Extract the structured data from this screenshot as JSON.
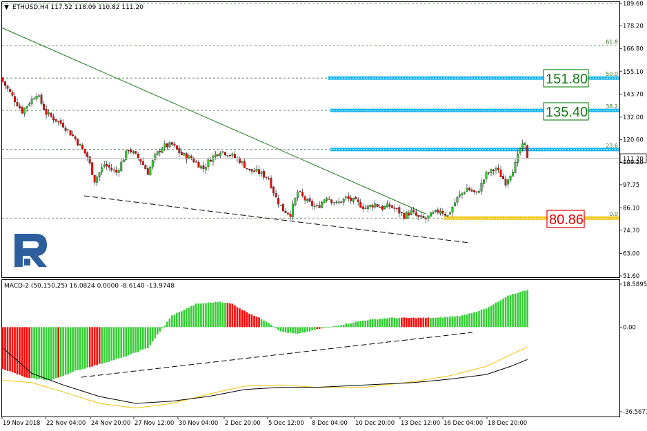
{
  "main_header": {
    "arrow": "▼",
    "text": "ETHUSD,H4  117.52 118.09 110.82 111.20"
  },
  "macd_header": {
    "text": "MACD-2 (50,150,25) 16.0824 0.0000 -8.6140 -13.9748"
  },
  "logo": {
    "icon": "roboforex-r-logo"
  },
  "colors": {
    "bull": "#33cc33",
    "bear": "#ff0000",
    "trend": "#1a7a1a",
    "fib_line": "#3b7a3b",
    "level_blue": "#00aeef",
    "level_yellow": "#f2c200",
    "support_red": "#e00000",
    "signal_yellow": "#f2c200"
  },
  "chart_data": [
    {
      "type": "candlestick",
      "title": "ETHUSD,H4",
      "ohlc_current": {
        "open": 117.52,
        "high": 118.09,
        "low": 110.82,
        "close": 111.2
      },
      "y_ticks": [
        189.6,
        178.2,
        166.8,
        155.1,
        143.7,
        132.0,
        120.6,
        109.2,
        97.75,
        86.1,
        74.7,
        63.0,
        51.6
      ],
      "ylim": [
        51.6,
        189.6
      ],
      "current_price": 111.2,
      "x_ticks": [
        "19 Nov 2018",
        "22 Nov 04:00",
        "24 Nov 20:00",
        "27 Nov 12:00",
        "30 Nov 04:00",
        "2 Dec 20:00",
        "5 Dec 12:00",
        "8 Dec 04:00",
        "10 Dec 20:00",
        "13 Dec 12:00",
        "16 Dec 04:00",
        "18 Dec 20:00"
      ],
      "fibonacci": [
        {
          "ratio": "0.0",
          "price": 80.86
        },
        {
          "ratio": "23.6",
          "price": 115.6
        },
        {
          "ratio": "38.2",
          "price": 135.4
        },
        {
          "ratio": "50.0",
          "price": 151.8
        },
        {
          "ratio": "61.8",
          "price": 168.2
        }
      ],
      "levels": [
        {
          "label": "151.80",
          "price": 151.8,
          "kind": "resistance"
        },
        {
          "label": "135.40",
          "price": 135.4,
          "kind": "resistance"
        },
        {
          "price": 115.6,
          "kind": "resistance"
        },
        {
          "label": "80.86",
          "price": 80.86,
          "kind": "support"
        }
      ],
      "close_path": [
        [
          0,
          150
        ],
        [
          8,
          135
        ],
        [
          14,
          144
        ],
        [
          18,
          134
        ],
        [
          25,
          128
        ],
        [
          30,
          121
        ],
        [
          35,
          112
        ],
        [
          38,
          100
        ],
        [
          42,
          108
        ],
        [
          47,
          104
        ],
        [
          52,
          116
        ],
        [
          57,
          110
        ],
        [
          60,
          104
        ],
        [
          63,
          112
        ],
        [
          66,
          117
        ],
        [
          70,
          118
        ],
        [
          74,
          113
        ],
        [
          78,
          111
        ],
        [
          83,
          106
        ],
        [
          86,
          111
        ],
        [
          90,
          115
        ],
        [
          94,
          113
        ],
        [
          98,
          110
        ],
        [
          102,
          105
        ],
        [
          106,
          104
        ],
        [
          110,
          101
        ],
        [
          113,
          91
        ],
        [
          116,
          85
        ],
        [
          119,
          83
        ],
        [
          122,
          94
        ],
        [
          126,
          89
        ],
        [
          130,
          86
        ],
        [
          134,
          92
        ],
        [
          138,
          88
        ],
        [
          142,
          91
        ],
        [
          146,
          89
        ],
        [
          150,
          86
        ],
        [
          154,
          88
        ],
        [
          157,
          86
        ],
        [
          160,
          87
        ],
        [
          163,
          85
        ],
        [
          166,
          82
        ],
        [
          169,
          84
        ],
        [
          172,
          81
        ],
        [
          175,
          80.5
        ],
        [
          178,
          83
        ],
        [
          181,
          85
        ],
        [
          184,
          82
        ],
        [
          188,
          91
        ],
        [
          192,
          96
        ],
        [
          196,
          93
        ],
        [
          200,
          103
        ],
        [
          204,
          106
        ],
        [
          208,
          99
        ],
        [
          212,
          108
        ],
        [
          214,
          116
        ],
        [
          216,
          118.09
        ],
        [
          217,
          111.2
        ]
      ]
    },
    {
      "type": "histogram+lines",
      "title": "MACD-2 (50,150,25)",
      "values_current": {
        "histogram": 16.0824,
        "zero": 0.0,
        "signal": -8.614,
        "main": -13.9748
      },
      "y_ticks": [
        18.5895,
        0.0,
        -36.5671
      ],
      "ylim": [
        -36.5671,
        18.5895
      ],
      "histogram_path": [
        [
          0,
          -18
        ],
        [
          10,
          -22
        ],
        [
          20,
          -23
        ],
        [
          30,
          -19
        ],
        [
          40,
          -16
        ],
        [
          50,
          -13
        ],
        [
          60,
          -9
        ],
        [
          65,
          -2
        ],
        [
          70,
          5
        ],
        [
          80,
          10
        ],
        [
          90,
          11
        ],
        [
          95,
          10
        ],
        [
          100,
          7
        ],
        [
          110,
          2
        ],
        [
          115,
          -2
        ],
        [
          122,
          -3
        ],
        [
          130,
          -1
        ],
        [
          140,
          1
        ],
        [
          150,
          3
        ],
        [
          160,
          4
        ],
        [
          170,
          4
        ],
        [
          180,
          4
        ],
        [
          190,
          5
        ],
        [
          200,
          8
        ],
        [
          210,
          14
        ],
        [
          217,
          16.08
        ]
      ],
      "histogram_red_ranges": [
        [
          0,
          11
        ],
        [
          23,
          23
        ],
        [
          36,
          40
        ],
        [
          93,
          106
        ],
        [
          130,
          131
        ],
        [
          165,
          176
        ]
      ],
      "signal_path": [
        [
          0,
          -23
        ],
        [
          12,
          -24
        ],
        [
          25,
          -28
        ],
        [
          40,
          -33
        ],
        [
          55,
          -35
        ],
        [
          70,
          -33
        ],
        [
          85,
          -29
        ],
        [
          100,
          -25.5
        ],
        [
          115,
          -25
        ],
        [
          130,
          -26
        ],
        [
          150,
          -26
        ],
        [
          170,
          -23.5
        ],
        [
          185,
          -21
        ],
        [
          200,
          -17
        ],
        [
          210,
          -12
        ],
        [
          217,
          -8.6
        ]
      ],
      "main_path": [
        [
          0,
          -9
        ],
        [
          12,
          -20
        ],
        [
          25,
          -25
        ],
        [
          40,
          -30
        ],
        [
          55,
          -33
        ],
        [
          70,
          -32
        ],
        [
          85,
          -30
        ],
        [
          100,
          -27
        ],
        [
          115,
          -26
        ],
        [
          130,
          -26
        ],
        [
          150,
          -25
        ],
        [
          170,
          -24
        ],
        [
          185,
          -22.5
        ],
        [
          200,
          -20.5
        ],
        [
          210,
          -17
        ],
        [
          217,
          -14
        ]
      ]
    }
  ]
}
